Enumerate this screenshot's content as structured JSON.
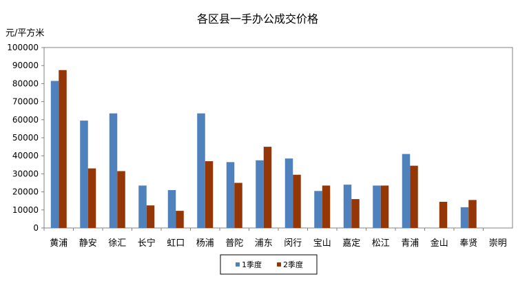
{
  "chart_data": {
    "type": "bar",
    "title": "各区县一手办公成交价格",
    "ylabel": "元/平方米",
    "xlabel": "",
    "ylim": [
      0,
      100000
    ],
    "yticks": [
      "0",
      "10000",
      "20000",
      "30000",
      "40000",
      "50000",
      "60000",
      "70000",
      "80000",
      "90000",
      "100000"
    ],
    "categories": [
      "黄浦",
      "静安",
      "徐汇",
      "长宁",
      "虹口",
      "杨浦",
      "普陀",
      "浦东",
      "闵行",
      "宝山",
      "嘉定",
      "松江",
      "青浦",
      "金山",
      "奉贤",
      "崇明"
    ],
    "series": [
      {
        "name": "1季度",
        "color": "#4F81BD",
        "values": [
          81500,
          59500,
          63500,
          23500,
          21000,
          63500,
          36500,
          37500,
          38500,
          20500,
          24000,
          23500,
          41000,
          null,
          11500,
          null
        ]
      },
      {
        "name": "2季度",
        "color": "#953607",
        "values": [
          87500,
          33000,
          31500,
          12500,
          9500,
          37000,
          25000,
          45000,
          29500,
          23500,
          16000,
          23500,
          34500,
          14500,
          15500,
          null
        ]
      }
    ],
    "grid": false,
    "legend_position": "bottom"
  }
}
